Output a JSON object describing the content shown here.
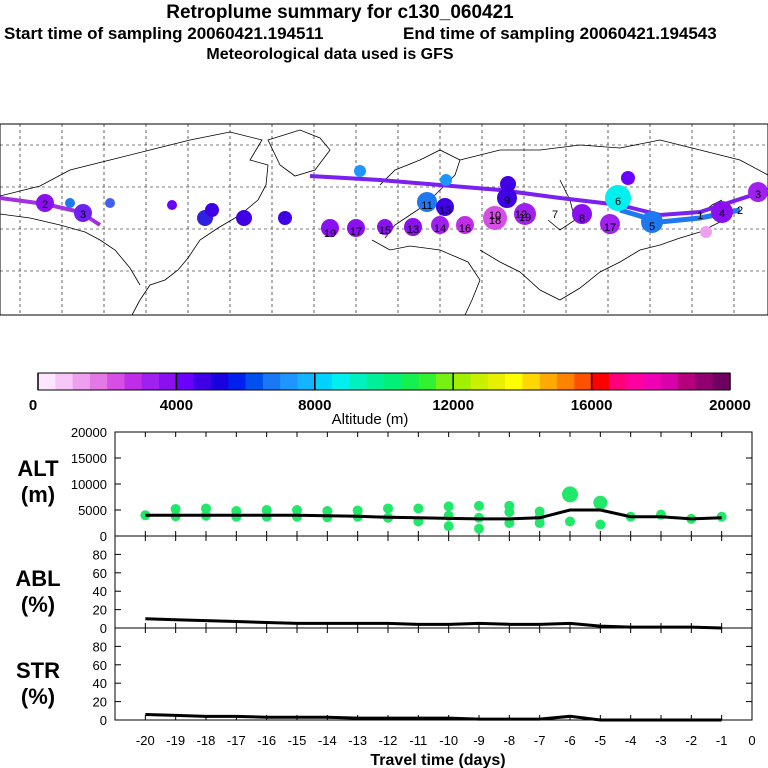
{
  "header": {
    "title": "Retroplume summary for c130_060421",
    "start": "Start time of sampling 20060421.194511",
    "end": "End time of sampling 20060421.194543",
    "met": "Meteorological data used is GFS"
  },
  "colorbar": {
    "label": "Altitude (m)",
    "ticks": [
      "0",
      "4000",
      "8000",
      "12000",
      "16000",
      "20000"
    ],
    "colors": [
      "#ffe6ff",
      "#f7c8f7",
      "#eea0ee",
      "#e478e4",
      "#d64ee6",
      "#bf2ee6",
      "#a020f0",
      "#8a10f0",
      "#6a00ff",
      "#4000e6",
      "#1800e0",
      "#0020f0",
      "#0050f0",
      "#1a78f5",
      "#1e96ff",
      "#14b4ff",
      "#00d2ff",
      "#00f0f0",
      "#00f0c0",
      "#00f09a",
      "#00f078",
      "#14f050",
      "#32f032",
      "#78f014",
      "#a0f000",
      "#c8f000",
      "#e6f000",
      "#ffff00",
      "#ffd700",
      "#ffaa00",
      "#ff8200",
      "#ff5000",
      "#ff0000",
      "#ff0078",
      "#ff00a0",
      "#f000b4",
      "#d800a8",
      "#b4007c",
      "#900070",
      "#700060"
    ]
  },
  "map": {
    "labels": [
      "2",
      "4",
      "3",
      "19",
      "17",
      "15",
      "13",
      "14",
      "16",
      "18",
      "17",
      "19",
      "13",
      "11",
      "10",
      "9",
      "8",
      "12",
      "7",
      "6",
      "5",
      "3",
      "2",
      "1"
    ]
  },
  "chart_data": [
    {
      "type": "line",
      "panel": "ALT",
      "ylabel": "ALT (m)",
      "yticks": [
        "20000",
        "15000",
        "10000",
        "5000",
        "0"
      ],
      "ylim": [
        0,
        20000
      ],
      "x": [
        -20,
        -19,
        -18,
        -17,
        -16,
        -15,
        -14,
        -13,
        -12,
        -11,
        -10,
        -9,
        -8,
        -7,
        -6,
        -5,
        -4,
        -3,
        -2,
        -1
      ],
      "series": [
        {
          "name": "mean altitude",
          "values": [
            4000,
            4000,
            4000,
            4000,
            4000,
            4000,
            3900,
            3800,
            3600,
            3500,
            3400,
            3300,
            3300,
            3500,
            5000,
            5000,
            3700,
            3700,
            3300,
            3500
          ]
        }
      ],
      "points": [
        {
          "x": -20,
          "y": 4000
        },
        {
          "x": -19,
          "y": 5200
        },
        {
          "x": -19,
          "y": 3800
        },
        {
          "x": -18,
          "y": 5300
        },
        {
          "x": -18,
          "y": 3900
        },
        {
          "x": -17,
          "y": 4800
        },
        {
          "x": -17,
          "y": 3700
        },
        {
          "x": -16,
          "y": 5000
        },
        {
          "x": -16,
          "y": 3700
        },
        {
          "x": -15,
          "y": 5000
        },
        {
          "x": -15,
          "y": 3700
        },
        {
          "x": -14,
          "y": 4800
        },
        {
          "x": -14,
          "y": 3600
        },
        {
          "x": -13,
          "y": 4900
        },
        {
          "x": -13,
          "y": 3700
        },
        {
          "x": -12,
          "y": 5300
        },
        {
          "x": -12,
          "y": 3500
        },
        {
          "x": -11,
          "y": 5300
        },
        {
          "x": -11,
          "y": 2800
        },
        {
          "x": -10,
          "y": 5700
        },
        {
          "x": -10,
          "y": 3900
        },
        {
          "x": -10,
          "y": 1900
        },
        {
          "x": -9,
          "y": 5800
        },
        {
          "x": -9,
          "y": 3500
        },
        {
          "x": -9,
          "y": 1400
        },
        {
          "x": -8,
          "y": 5800
        },
        {
          "x": -8,
          "y": 4600
        },
        {
          "x": -8,
          "y": 2500
        },
        {
          "x": -7,
          "y": 4700
        },
        {
          "x": -7,
          "y": 3600
        },
        {
          "x": -7,
          "y": 2500
        },
        {
          "x": -6,
          "y": 8000
        },
        {
          "x": -6,
          "y": 2800
        },
        {
          "x": -5,
          "y": 6400
        },
        {
          "x": -5,
          "y": 2200
        },
        {
          "x": -4,
          "y": 3700
        },
        {
          "x": -3,
          "y": 4100
        },
        {
          "x": -2,
          "y": 3300
        },
        {
          "x": -1,
          "y": 3700
        }
      ],
      "point_color": "#22e86a"
    },
    {
      "type": "line",
      "panel": "ABL",
      "ylabel": "ABL (%)",
      "yticks": [
        "80",
        "60",
        "40",
        "20",
        "0"
      ],
      "ylim": [
        0,
        100
      ],
      "x": [
        -20,
        -19,
        -18,
        -17,
        -16,
        -15,
        -14,
        -13,
        -12,
        -11,
        -10,
        -9,
        -8,
        -7,
        -6,
        -5,
        -4,
        -3,
        -2,
        -1
      ],
      "series": [
        {
          "name": "ABL fraction",
          "values": [
            10,
            9,
            8,
            7,
            6,
            5,
            5,
            5,
            5,
            4,
            4,
            5,
            4,
            4,
            5,
            2,
            1,
            1,
            1,
            0
          ]
        }
      ]
    },
    {
      "type": "line",
      "panel": "STR",
      "ylabel": "STR (%)",
      "yticks": [
        "80",
        "60",
        "40",
        "20",
        "0"
      ],
      "ylim": [
        0,
        100
      ],
      "x": [
        -20,
        -19,
        -18,
        -17,
        -16,
        -15,
        -14,
        -13,
        -12,
        -11,
        -10,
        -9,
        -8,
        -7,
        -6,
        -5,
        -4,
        -3,
        -2,
        -1
      ],
      "series": [
        {
          "name": "stratospheric fraction",
          "values": [
            6,
            5,
            4,
            4,
            3,
            3,
            3,
            2,
            2,
            2,
            2,
            1,
            1,
            1,
            4,
            0,
            0,
            0,
            0,
            0
          ]
        }
      ]
    }
  ],
  "xaxis": {
    "label": "Travel time (days)",
    "ticks": [
      "-20",
      "-19",
      "-18",
      "-17",
      "-16",
      "-15",
      "-14",
      "-13",
      "-12",
      "-11",
      "-10",
      "-9",
      "-8",
      "-7",
      "-6",
      "-5",
      "-4",
      "-3",
      "-2",
      "-1",
      "0"
    ]
  }
}
